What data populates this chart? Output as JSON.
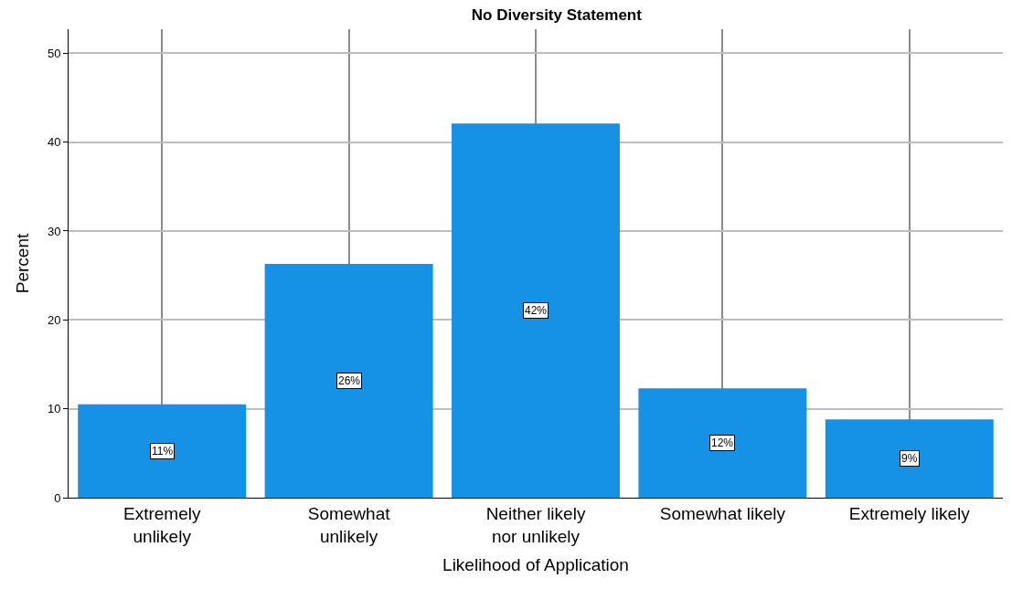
{
  "chart_data": {
    "type": "bar",
    "title": "No Diversity Statement",
    "xlabel": "Likelihood of Application",
    "ylabel": "Percent",
    "categories": [
      "Extremely unlikely",
      "Somewhat unlikely",
      "Neither likely nor unlikely",
      "Somewhat likely",
      "Extremely likely"
    ],
    "values": [
      10.5,
      26.3,
      42.1,
      12.3,
      8.8
    ],
    "value_labels": [
      "11%",
      "26%",
      "42%",
      "12%",
      "9%"
    ],
    "color": "#1591e6",
    "ylim": [
      0,
      52.7
    ],
    "yticks": [
      0,
      10,
      20,
      30,
      40,
      50
    ],
    "grid": true
  }
}
